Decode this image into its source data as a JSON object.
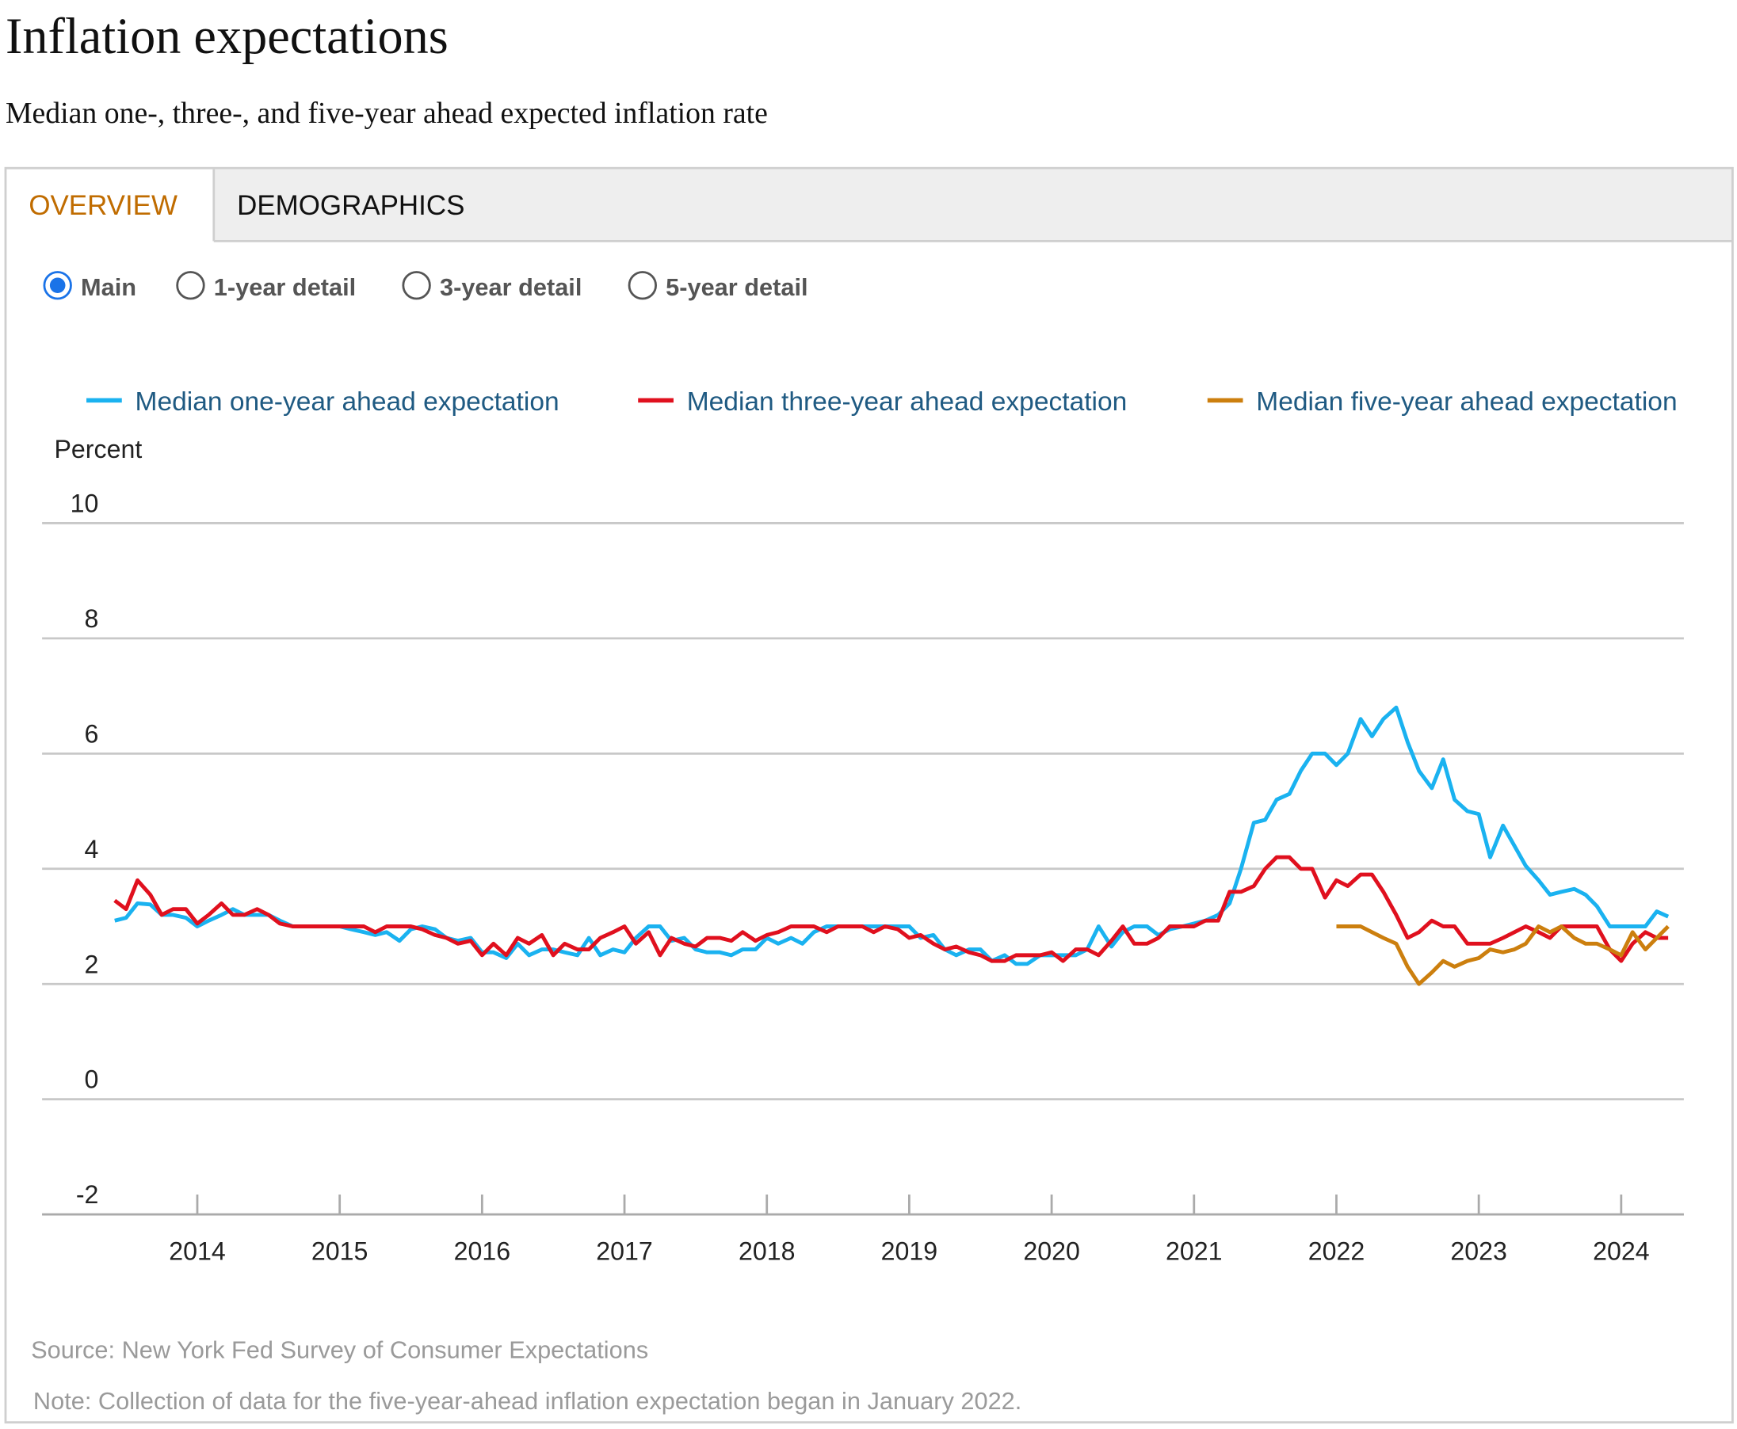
{
  "title": "Inflation expectations",
  "subtitle": "Median one-, three-, and five-year ahead expected inflation rate",
  "tabs": [
    "OVERVIEW",
    "DEMOGRAPHICS"
  ],
  "active_tab": 0,
  "radio_options": [
    "Main",
    "1-year detail",
    "3-year detail",
    "5-year detail"
  ],
  "selected_option": 0,
  "source": "Source: New York Fed Survey of Consumer Expectations",
  "note": "Note: Collection of data for the five-year-ahead inflation expectation began in January 2022.",
  "chart_data": {
    "type": "line",
    "y_label": "Percent",
    "x": [
      2013.42,
      2013.5,
      2013.58,
      2013.67,
      2013.75,
      2013.83,
      2013.92,
      2014,
      2014.08,
      2014.17,
      2014.25,
      2014.33,
      2014.42,
      2014.5,
      2014.58,
      2014.67,
      2014.75,
      2014.83,
      2014.92,
      2015,
      2015.08,
      2015.17,
      2015.25,
      2015.33,
      2015.42,
      2015.5,
      2015.58,
      2015.67,
      2015.75,
      2015.83,
      2015.92,
      2016,
      2016.08,
      2016.17,
      2016.25,
      2016.33,
      2016.42,
      2016.5,
      2016.58,
      2016.67,
      2016.75,
      2016.83,
      2016.92,
      2017,
      2017.08,
      2017.17,
      2017.25,
      2017.33,
      2017.42,
      2017.5,
      2017.58,
      2017.67,
      2017.75,
      2017.83,
      2017.92,
      2018,
      2018.08,
      2018.17,
      2018.25,
      2018.33,
      2018.42,
      2018.5,
      2018.58,
      2018.67,
      2018.75,
      2018.83,
      2018.92,
      2019,
      2019.08,
      2019.17,
      2019.25,
      2019.33,
      2019.42,
      2019.5,
      2019.58,
      2019.67,
      2019.75,
      2019.83,
      2019.92,
      2020,
      2020.08,
      2020.17,
      2020.25,
      2020.33,
      2020.42,
      2020.5,
      2020.58,
      2020.67,
      2020.75,
      2020.83,
      2020.92,
      2021,
      2021.08,
      2021.17,
      2021.25,
      2021.33,
      2021.42,
      2021.5,
      2021.58,
      2021.67,
      2021.75,
      2021.83,
      2021.92,
      2022,
      2022.08,
      2022.17,
      2022.25,
      2022.33,
      2022.42,
      2022.5,
      2022.58,
      2022.67,
      2022.75,
      2022.83,
      2022.92,
      2023,
      2023.08,
      2023.17,
      2023.25,
      2023.33,
      2023.42,
      2023.5,
      2023.58,
      2023.67,
      2023.75,
      2023.83,
      2023.92,
      2024,
      2024.08,
      2024.17,
      2024.25,
      2024.33
    ],
    "series": [
      {
        "name": "Median one-year ahead expectation",
        "color": "#1ab2f0",
        "values": [
          3.1,
          3.15,
          3.4,
          3.38,
          3.2,
          3.2,
          3.15,
          3.0,
          3.1,
          3.2,
          3.3,
          3.2,
          3.2,
          3.2,
          3.1,
          3.0,
          3.0,
          3.0,
          3.0,
          3.0,
          2.95,
          2.9,
          2.85,
          2.9,
          2.75,
          2.95,
          3.0,
          2.95,
          2.8,
          2.75,
          2.8,
          2.55,
          2.55,
          2.45,
          2.7,
          2.5,
          2.6,
          2.6,
          2.55,
          2.5,
          2.8,
          2.5,
          2.6,
          2.55,
          2.8,
          3.0,
          3.0,
          2.75,
          2.8,
          2.6,
          2.55,
          2.55,
          2.5,
          2.6,
          2.6,
          2.8,
          2.7,
          2.8,
          2.7,
          2.9,
          3.0,
          3.0,
          3.0,
          3.0,
          3.0,
          3.0,
          3.0,
          3.0,
          2.8,
          2.85,
          2.6,
          2.5,
          2.6,
          2.6,
          2.4,
          2.5,
          2.35,
          2.35,
          2.5,
          2.5,
          2.5,
          2.5,
          2.6,
          3.0,
          2.65,
          2.9,
          3.0,
          3.0,
          2.85,
          2.95,
          3.0,
          3.05,
          3.1,
          3.2,
          3.4,
          4.0,
          4.8,
          4.85,
          5.2,
          5.3,
          5.7,
          6.0,
          6.0,
          5.8,
          6.0,
          6.6,
          6.3,
          6.6,
          6.8,
          6.2,
          5.7,
          5.4,
          5.9,
          5.2,
          5.0,
          4.95,
          4.2,
          4.75,
          4.4,
          4.05,
          3.8,
          3.55,
          3.6,
          3.65,
          3.55,
          3.35,
          3.0,
          3.0,
          3.0,
          3.0,
          3.26,
          3.17
        ]
      },
      {
        "name": "Median three-year ahead expectation",
        "color": "#e0101e",
        "values": [
          3.45,
          3.3,
          3.8,
          3.55,
          3.2,
          3.3,
          3.3,
          3.05,
          3.2,
          3.4,
          3.2,
          3.2,
          3.3,
          3.2,
          3.05,
          3.0,
          3.0,
          3.0,
          3.0,
          3.0,
          3.0,
          3.0,
          2.9,
          3.0,
          3.0,
          3.0,
          2.95,
          2.85,
          2.8,
          2.7,
          2.75,
          2.5,
          2.7,
          2.5,
          2.8,
          2.7,
          2.85,
          2.5,
          2.7,
          2.6,
          2.6,
          2.8,
          2.9,
          3.0,
          2.7,
          2.9,
          2.5,
          2.8,
          2.7,
          2.65,
          2.8,
          2.8,
          2.75,
          2.9,
          2.75,
          2.85,
          2.9,
          3.0,
          3.0,
          3.0,
          2.9,
          3.0,
          3.0,
          3.0,
          2.9,
          3.0,
          2.95,
          2.8,
          2.85,
          2.7,
          2.6,
          2.65,
          2.55,
          2.5,
          2.4,
          2.4,
          2.5,
          2.5,
          2.5,
          2.55,
          2.4,
          2.6,
          2.6,
          2.5,
          2.75,
          3.0,
          2.7,
          2.7,
          2.8,
          3.0,
          3.0,
          3.0,
          3.1,
          3.1,
          3.6,
          3.6,
          3.7,
          4.0,
          4.2,
          4.2,
          4.0,
          4.0,
          3.5,
          3.8,
          3.7,
          3.9,
          3.9,
          3.6,
          3.2,
          2.8,
          2.9,
          3.1,
          3.0,
          3.0,
          2.7,
          2.7,
          2.7,
          2.8,
          2.9,
          3.0,
          2.9,
          2.8,
          3.0,
          3.0,
          3.0,
          3.0,
          2.6,
          2.4,
          2.7,
          2.9,
          2.8,
          2.8
        ]
      },
      {
        "name": "Median five-year ahead expectation",
        "color": "#cc7f0e",
        "values": [
          null,
          null,
          null,
          null,
          null,
          null,
          null,
          null,
          null,
          null,
          null,
          null,
          null,
          null,
          null,
          null,
          null,
          null,
          null,
          null,
          null,
          null,
          null,
          null,
          null,
          null,
          null,
          null,
          null,
          null,
          null,
          null,
          null,
          null,
          null,
          null,
          null,
          null,
          null,
          null,
          null,
          null,
          null,
          null,
          null,
          null,
          null,
          null,
          null,
          null,
          null,
          null,
          null,
          null,
          null,
          null,
          null,
          null,
          null,
          null,
          null,
          null,
          null,
          null,
          null,
          null,
          null,
          null,
          null,
          null,
          null,
          null,
          null,
          null,
          null,
          null,
          null,
          null,
          null,
          null,
          null,
          null,
          null,
          null,
          null,
          null,
          null,
          null,
          null,
          null,
          null,
          null,
          null,
          null,
          null,
          null,
          null,
          null,
          null,
          null,
          null,
          null,
          null,
          3.0,
          3.0,
          3.0,
          2.9,
          2.8,
          2.7,
          2.3,
          2.0,
          2.2,
          2.4,
          2.3,
          2.4,
          2.45,
          2.6,
          2.55,
          2.6,
          2.7,
          3.0,
          2.9,
          3.0,
          2.8,
          2.7,
          2.7,
          2.6,
          2.5,
          2.9,
          2.6,
          2.8,
          3.0
        ]
      }
    ],
    "xlim": [
      2012.91,
      2024.44
    ],
    "xticks": [
      2014,
      2015,
      2016,
      2017,
      2018,
      2019,
      2020,
      2021,
      2022,
      2023,
      2024
    ],
    "ylim": [
      -2,
      10
    ],
    "yticks": [
      -2,
      0,
      2,
      4,
      6,
      8,
      10
    ],
    "grid": true
  }
}
